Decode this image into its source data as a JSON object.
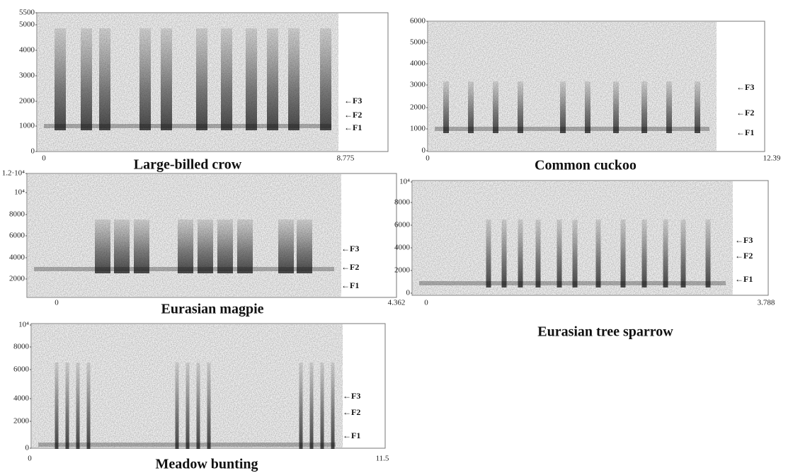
{
  "panels": [
    {
      "title": "Large-billed crow",
      "y_tick_labels": [
        "5500",
        "5000",
        "4000",
        "3000",
        "2000",
        "1000",
        "0"
      ],
      "x_tick_labels": [
        "0",
        "8.775"
      ],
      "formant_labels": [
        "←F3",
        "←F2",
        "←F1"
      ]
    },
    {
      "title": "Common cuckoo",
      "y_tick_labels": [
        "6000",
        "5000",
        "4000",
        "3000",
        "2000",
        "1000",
        "0"
      ],
      "x_tick_labels": [
        "0",
        "12.39"
      ],
      "formant_labels": [
        "←F3",
        "←F2",
        "←F1"
      ]
    },
    {
      "title": "Eurasian magpie",
      "y_tick_labels": [
        "1.2·10⁴",
        "10⁴",
        "8000",
        "6000",
        "4000",
        "2000"
      ],
      "x_tick_labels": [
        "0",
        "4.362"
      ],
      "formant_labels": [
        "←F3",
        "←F2",
        "←F1"
      ]
    },
    {
      "title": "Eurasian tree sparrow",
      "y_tick_labels": [
        "10⁴",
        "8000",
        "6000",
        "4000",
        "2000",
        "0"
      ],
      "x_tick_labels": [
        "0",
        "3.788"
      ],
      "formant_labels": [
        "←F3",
        "←F2",
        "←F1"
      ]
    },
    {
      "title": "Meadow bunting",
      "y_tick_labels": [
        "10⁴",
        "8000",
        "6000",
        "4000",
        "2000",
        "0"
      ],
      "x_tick_labels": [
        "0",
        "11.5"
      ],
      "formant_labels": [
        "←F3",
        "←F2",
        "←F1"
      ]
    }
  ]
}
